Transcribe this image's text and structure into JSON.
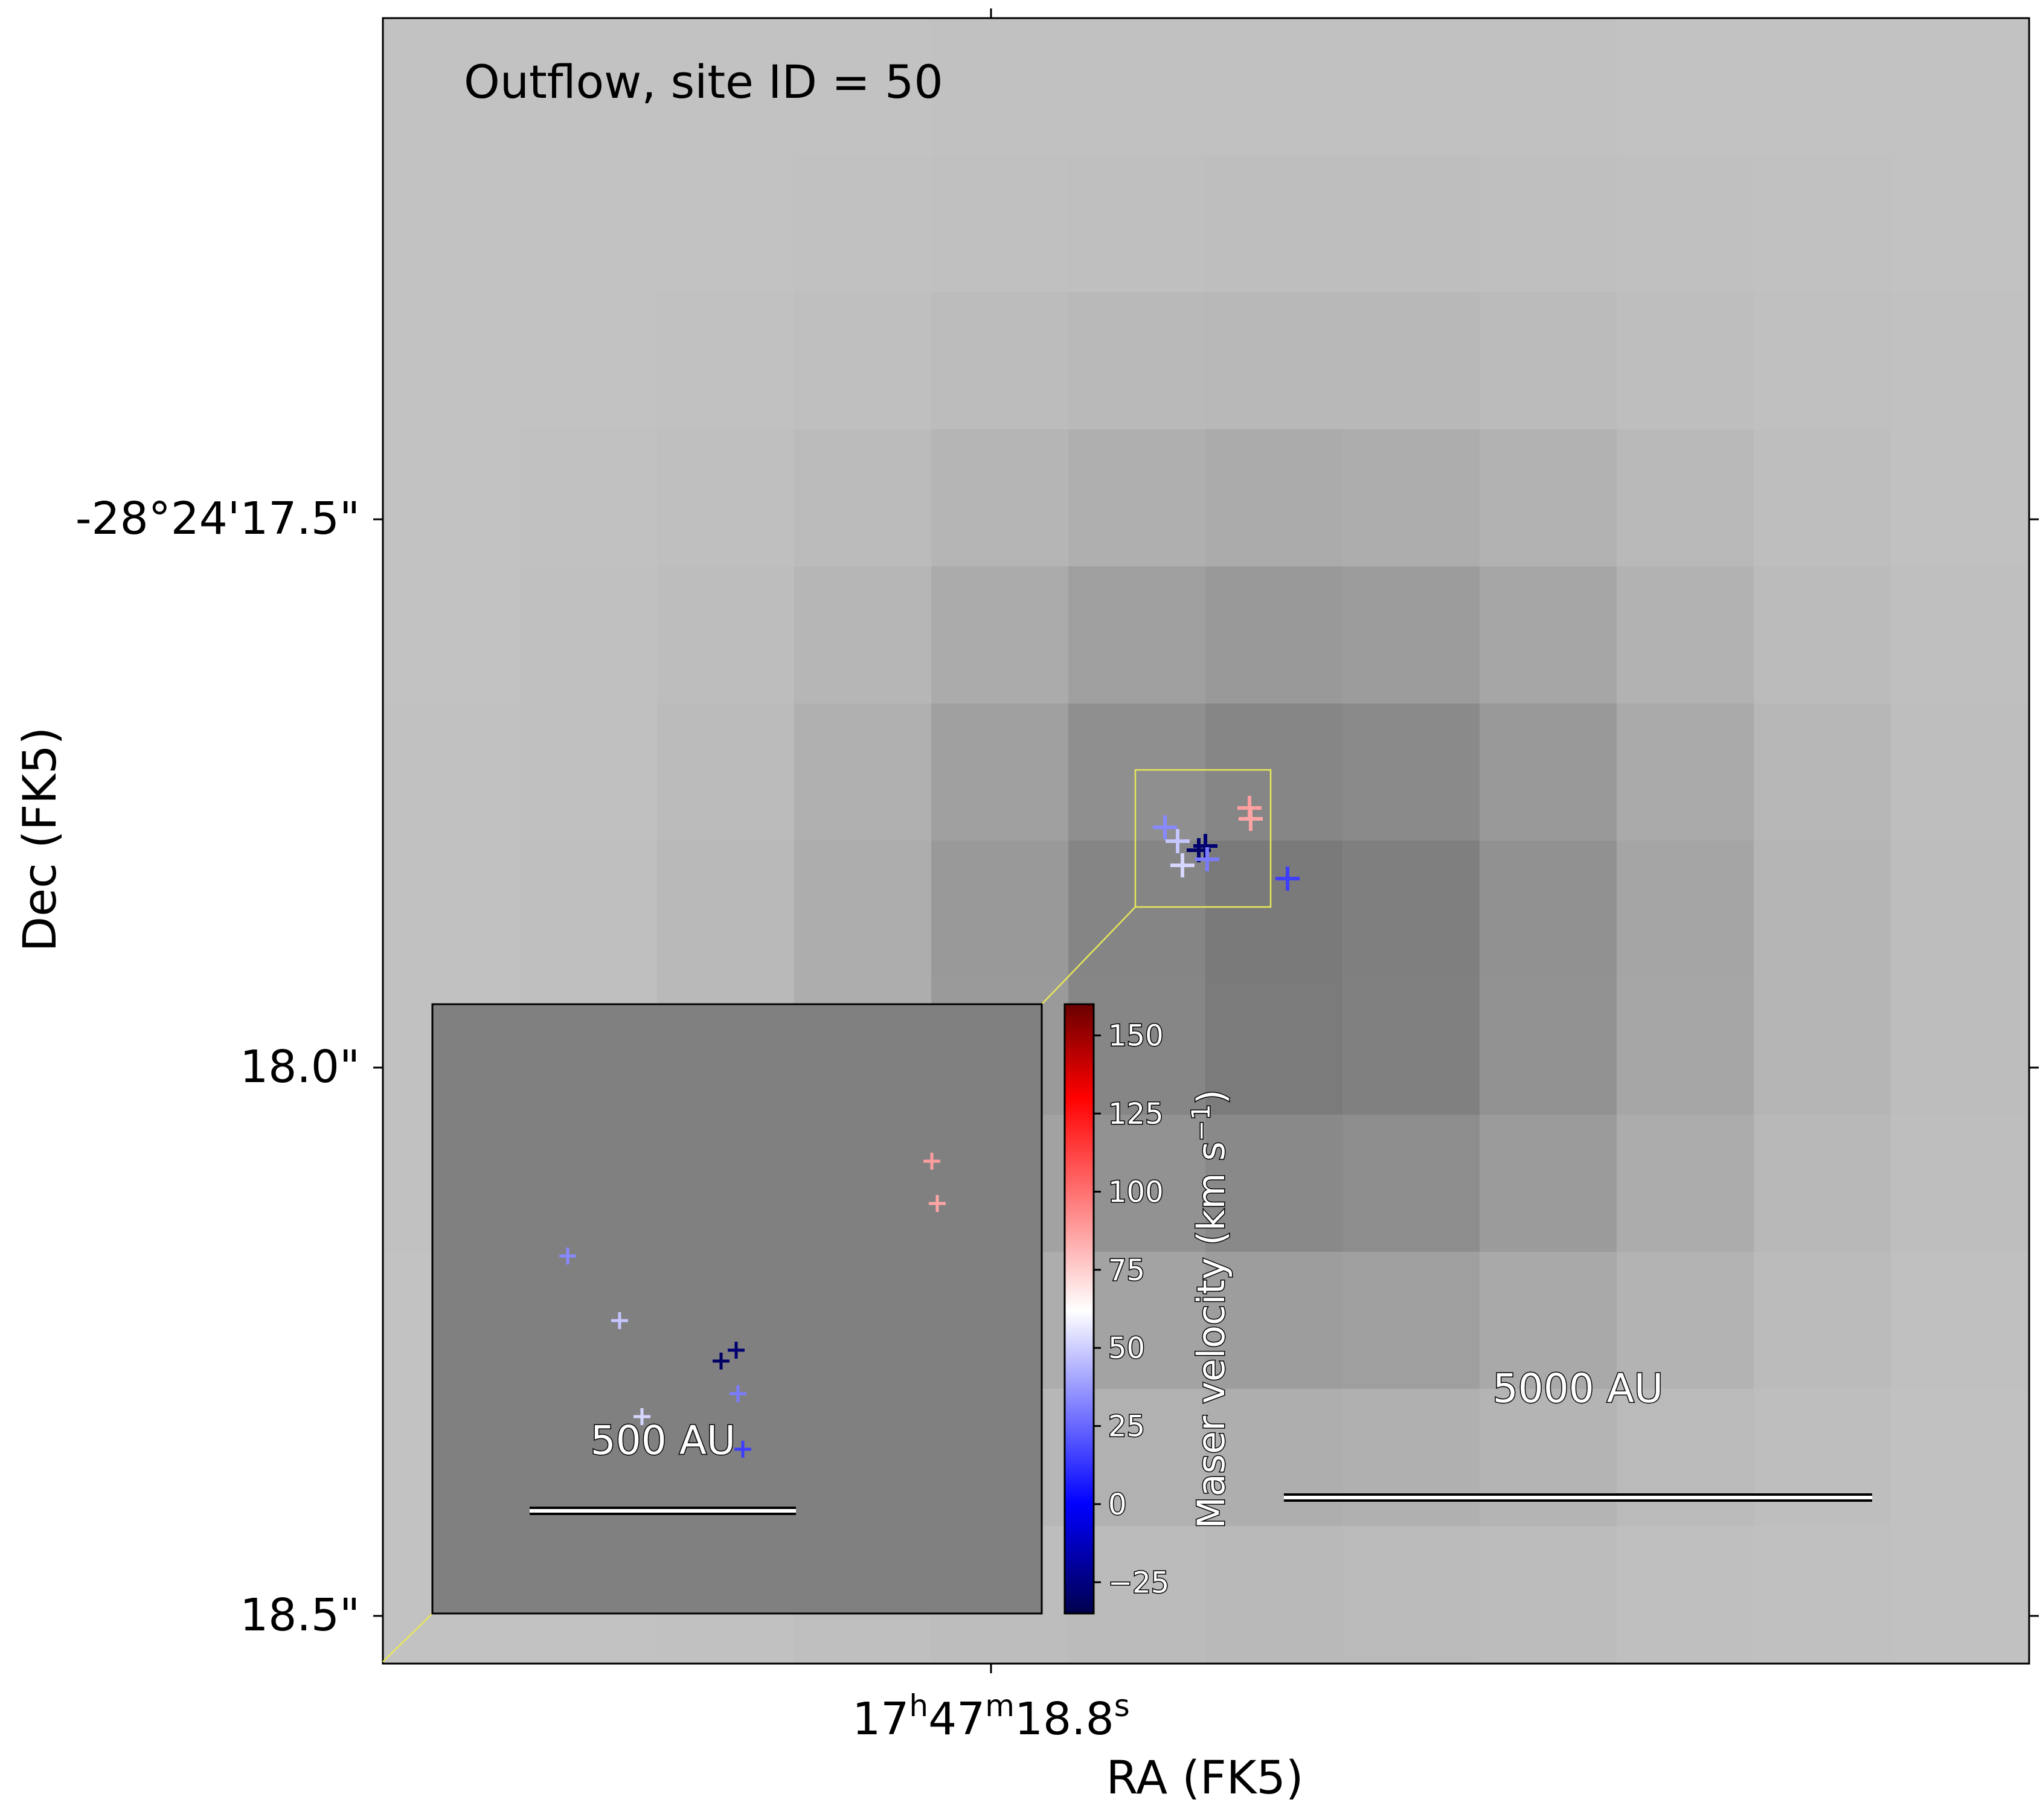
{
  "chart_data": {
    "type": "scatter",
    "title": "Outflow, site ID = 50",
    "xlabel": "RA (FK5)",
    "ylabel": "Dec (FK5)",
    "x_ticks": [
      {
        "h": "17",
        "m": "47",
        "s": "18.8"
      }
    ],
    "y_ticks": [
      "-28°24'17.5\"",
      "18.0\"",
      "18.5\""
    ],
    "main_scalebar_label": "5000 AU",
    "inset_scalebar_label": "500 AU",
    "colorbar": {
      "label_main": "Maser velocity (km s",
      "label_sup": "−1",
      "label_close": ")",
      "vmin": -35,
      "vmax": 160,
      "ticks": [
        "−25",
        "0",
        "25",
        "50",
        "75",
        "100",
        "125",
        "150"
      ],
      "tick_values": [
        -25,
        0,
        25,
        50,
        75,
        100,
        125,
        150
      ],
      "colormap": [
        "#00004d",
        "#0000ff",
        "#ffffff",
        "#ff0000",
        "#6a0000"
      ],
      "colormap_stops": [
        -35,
        0,
        62,
        130,
        160
      ]
    },
    "background_colors": {
      "light": "#c2c2c2",
      "dark": "#787878",
      "inset": "#808080",
      "zoom_box": "#e6e65a"
    },
    "masers": [
      {
        "id": "m1",
        "velocity": 88
      },
      {
        "id": "m2",
        "velocity": 86
      },
      {
        "id": "m3",
        "velocity": 33
      },
      {
        "id": "m4",
        "velocity": 48
      },
      {
        "id": "m5",
        "velocity": -30
      },
      {
        "id": "m6",
        "velocity": -28
      },
      {
        "id": "m7",
        "velocity": 30
      },
      {
        "id": "m8",
        "velocity": 52
      },
      {
        "id": "m9",
        "velocity": 15
      }
    ]
  }
}
